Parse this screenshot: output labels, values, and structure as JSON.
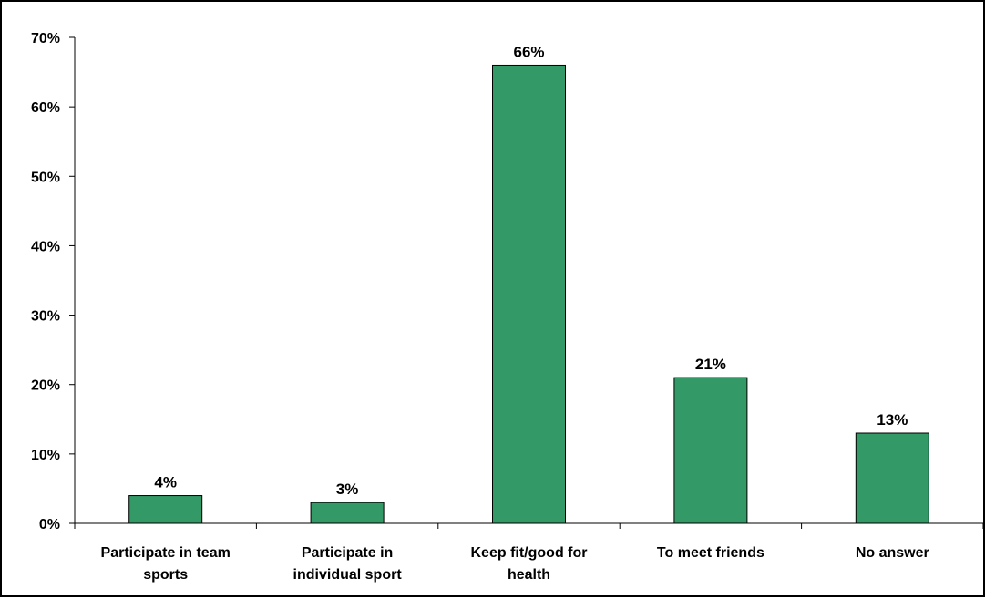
{
  "chart_data": {
    "type": "bar",
    "title": "",
    "xlabel": "",
    "ylabel": "",
    "ylim": [
      0,
      70
    ],
    "y_ticks": [
      0,
      10,
      20,
      30,
      40,
      50,
      60,
      70
    ],
    "y_tick_labels": [
      "0%",
      "10%",
      "20%",
      "30%",
      "40%",
      "50%",
      "60%",
      "70%"
    ],
    "categories": [
      [
        "Participate in team",
        "sports"
      ],
      [
        "Participate in",
        "individual sport"
      ],
      [
        "Keep fit/good for",
        "health"
      ],
      [
        "To meet friends"
      ],
      [
        "No answer"
      ]
    ],
    "values": [
      4,
      3,
      66,
      21,
      13
    ],
    "data_labels": [
      "4%",
      "3%",
      "66%",
      "21%",
      "13%"
    ],
    "grid": false,
    "legend": "none",
    "bar_color": "#339966"
  }
}
